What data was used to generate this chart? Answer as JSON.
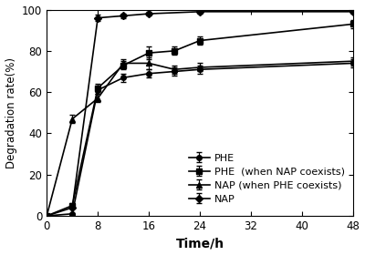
{
  "title": "",
  "xlabel": "Time/h",
  "ylabel": "Degradation rate(%)",
  "xlim": [
    0,
    48
  ],
  "ylim": [
    0,
    100
  ],
  "xticks": [
    0,
    8,
    16,
    24,
    32,
    40,
    48
  ],
  "yticks": [
    0,
    20,
    40,
    60,
    80,
    100
  ],
  "series": [
    {
      "label": "PHE",
      "x": [
        0,
        4,
        8,
        12,
        16,
        20,
        24,
        48
      ],
      "y": [
        0,
        1.0,
        61,
        67,
        69,
        70,
        71,
        74
      ],
      "yerr": [
        0,
        0.5,
        2,
        2,
        2,
        2,
        2,
        2
      ],
      "marker": "o",
      "markersize": 4,
      "linewidth": 1.2,
      "color": "#000000",
      "linestyle": "-"
    },
    {
      "label": "PHE  (when NAP coexists)",
      "x": [
        0,
        4,
        8,
        12,
        16,
        20,
        24,
        48
      ],
      "y": [
        0,
        5,
        62,
        73,
        79,
        80,
        85,
        93
      ],
      "yerr": [
        0,
        1,
        2,
        2,
        3,
        2,
        2,
        2
      ],
      "marker": "s",
      "markersize": 4,
      "linewidth": 1.2,
      "color": "#000000",
      "linestyle": "-"
    },
    {
      "label": "NAP (when PHE coexists)",
      "x": [
        0,
        4,
        8,
        12,
        16,
        20,
        24,
        48
      ],
      "y": [
        0,
        47,
        57,
        74,
        74,
        71,
        72,
        75
      ],
      "yerr": [
        0,
        2,
        2,
        2,
        3,
        2,
        2,
        2
      ],
      "marker": "^",
      "markersize": 5,
      "linewidth": 1.2,
      "color": "#000000",
      "linestyle": "-"
    },
    {
      "label": "NAP",
      "x": [
        0,
        4,
        8,
        12,
        16,
        24,
        48
      ],
      "y": [
        0,
        4,
        96,
        97,
        98,
        99,
        99
      ],
      "yerr": [
        0,
        0.5,
        1.5,
        1,
        1,
        1,
        1
      ],
      "marker": "D",
      "markersize": 4,
      "linewidth": 1.2,
      "color": "#000000",
      "linestyle": "-"
    }
  ],
  "background_color": "#ffffff",
  "font_size": 8.5
}
